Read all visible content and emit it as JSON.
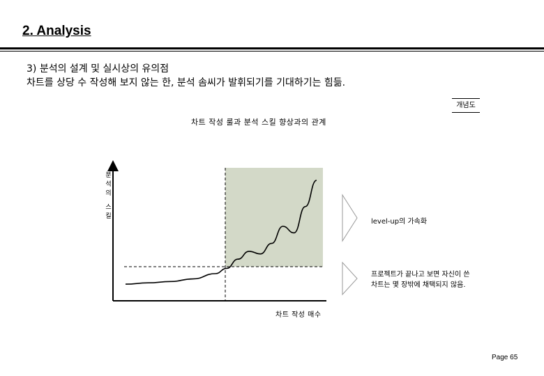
{
  "slide": {
    "title": "2. Analysis",
    "heading_line1": "3) 분석의 설계 및 실시상의 유의점",
    "heading_line2": "차트를 상당 수 작성해 보지 않는 한, 분석 솜씨가 발휘되기를 기대하기는 힘듦.",
    "concept_label": "개념도",
    "page_number": "Page 65"
  },
  "chart": {
    "title": "차트 작성 룰과 분석 스킬 향상과의 관계",
    "ylabel": "분석의 스킬",
    "xlabel": "차트 작성 매수",
    "note_levelup": "level-up의 가속화",
    "note_project": "프로젝트가 끝나고 보면 자신이 쓴 차트는 몇 장밖에 채택되지 않음."
  },
  "chart_data": {
    "type": "line",
    "title": "차트 작성 룰과 분석 스킬 향상과의 관계",
    "xlabel": "차트 작성 매수",
    "ylabel": "분석의 스킬",
    "series": [
      {
        "x": [
          0,
          10,
          20,
          30,
          40,
          45,
          50,
          55,
          60,
          65,
          70,
          75,
          80,
          85
        ],
        "y": [
          1,
          2,
          3,
          5,
          9,
          13,
          20,
          26,
          24,
          32,
          45,
          40,
          60,
          80
        ]
      }
    ],
    "shaded_region": {
      "x_from": 40
    },
    "colors": {
      "shaded": "#d3d9c8",
      "line": "#000000"
    }
  }
}
